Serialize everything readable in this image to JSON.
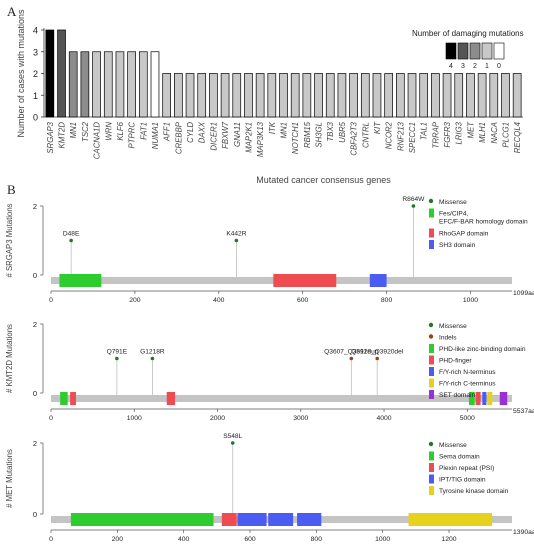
{
  "panel_a": {
    "letter": "A"
  },
  "panel_b": {
    "letter": "B"
  },
  "chart_data": [
    {
      "type": "bar",
      "ylabel": "Number of cases with mutations",
      "xlabel": "Mutated cancer consensus genes",
      "ylim": [
        0,
        4
      ],
      "yticks": [
        0,
        1,
        2,
        3,
        4
      ],
      "categories": [
        "SRGAP3",
        "KMT2D",
        "MN1",
        "TSC2",
        "CACNA1D",
        "WRN",
        "KLF6",
        "PTPRC",
        "FAT1",
        "NUMA1",
        "AFF1",
        "CREBBP",
        "CYLD",
        "DAXX",
        "DICER1",
        "FBXW7",
        "GNA11",
        "MAP2K1",
        "MAP3K13",
        "ITK",
        "MN1",
        "NOTCH1",
        "RBM15",
        "SH3GL",
        "TBX3",
        "UBR5",
        "CBFA2T3",
        "CNTRL",
        "KIT",
        "NCOR2",
        "RNF213",
        "SPECC1",
        "TAL1",
        "TRRAP",
        "FGFR3",
        "LRIG3",
        "MET",
        "MLH1",
        "NACA",
        "PLCG1",
        "RECQL4"
      ],
      "values": [
        4,
        4,
        3,
        3,
        3,
        3,
        3,
        3,
        3,
        3,
        2,
        2,
        2,
        2,
        2,
        2,
        2,
        2,
        2,
        2,
        2,
        2,
        2,
        2,
        2,
        2,
        2,
        2,
        2,
        2,
        2,
        2,
        2,
        2,
        2,
        2,
        2,
        2,
        2,
        2,
        2
      ],
      "damaging": [
        4,
        3,
        2,
        2,
        1,
        1,
        1,
        1,
        1,
        0,
        1,
        1,
        1,
        1,
        1,
        1,
        1,
        1,
        1,
        1,
        1,
        1,
        1,
        1,
        1,
        1,
        1,
        1,
        1,
        1,
        1,
        1,
        1,
        1,
        1,
        1,
        1,
        1,
        1,
        1,
        1
      ],
      "legend": {
        "title": "Number of damaging mutations",
        "labels": [
          "4",
          "3",
          "2",
          "1",
          "0"
        ],
        "colors": [
          "#000000",
          "#555555",
          "#8c8c8c",
          "#c8c8c8",
          "#ffffff"
        ]
      }
    },
    {
      "type": "lollipop",
      "ylabel": "# SRGAP3 Mutations",
      "ylim": [
        0,
        2
      ],
      "yticks": [
        0,
        2
      ],
      "xlim": [
        0,
        1099
      ],
      "xticks": [
        0,
        200,
        400,
        600,
        800,
        1000
      ],
      "length_label": "1099aa",
      "mutations": [
        {
          "pos": 48,
          "count": 1,
          "label": "D48E",
          "type": "Missense"
        },
        {
          "pos": 442,
          "count": 1,
          "label": "K442R",
          "type": "Missense"
        },
        {
          "pos": 864,
          "count": 2,
          "label": "R864W",
          "type": "Missense"
        }
      ],
      "domains": [
        {
          "start": 20,
          "end": 120,
          "color": "#2ecc2e"
        },
        {
          "start": 530,
          "end": 680,
          "color": "#ee4c50"
        },
        {
          "start": 760,
          "end": 800,
          "color": "#4b5cf2"
        }
      ],
      "legend": [
        {
          "kind": "dot",
          "color": "#1f7a1f",
          "label": "Missense"
        },
        {
          "kind": "box",
          "color": "#2ecc2e",
          "label": "Fes/CIP4, EFC/F-BAR homology domain"
        },
        {
          "kind": "box",
          "color": "#ee4c50",
          "label": "RhoGAP domain"
        },
        {
          "kind": "box",
          "color": "#4b5cf2",
          "label": "SH3 domain"
        }
      ]
    },
    {
      "type": "lollipop",
      "ylabel": "# KMT2D Mutations",
      "ylim": [
        0,
        2
      ],
      "yticks": [
        0,
        2
      ],
      "xlim": [
        0,
        5537
      ],
      "xticks": [
        0,
        1000,
        2000,
        3000,
        4000,
        5000
      ],
      "length_label": "5537aa",
      "mutations": [
        {
          "pos": 791,
          "count": 1,
          "label": "Q791E",
          "type": "Missense"
        },
        {
          "pos": 1218,
          "count": 1,
          "label": "G1218R",
          "type": "Missense"
        },
        {
          "pos": 3607,
          "count": 1,
          "label": "Q3607_Q3612dup",
          "type": "Indels"
        },
        {
          "pos": 3918,
          "count": 1,
          "label": "Q3918_Q3920del",
          "type": "Indels"
        }
      ],
      "domains": [
        {
          "start": 110,
          "end": 200,
          "color": "#2ecc2e"
        },
        {
          "start": 230,
          "end": 300,
          "color": "#ee4c50"
        },
        {
          "start": 1390,
          "end": 1490,
          "color": "#ee4c50"
        },
        {
          "start": 5020,
          "end": 5090,
          "color": "#2ecc2e"
        },
        {
          "start": 5100,
          "end": 5160,
          "color": "#ee4c50"
        },
        {
          "start": 5180,
          "end": 5230,
          "color": "#4b5cf2"
        },
        {
          "start": 5240,
          "end": 5300,
          "color": "#e6d21b"
        },
        {
          "start": 5390,
          "end": 5480,
          "color": "#9b2fd3"
        }
      ],
      "legend": [
        {
          "kind": "dot",
          "color": "#1f7a1f",
          "label": "Missense"
        },
        {
          "kind": "dot",
          "color": "#a0401a",
          "label": "Indels"
        },
        {
          "kind": "box",
          "color": "#2ecc2e",
          "label": "PHD-like zinc-binding domain"
        },
        {
          "kind": "box",
          "color": "#ee4c50",
          "label": "PHD-finger"
        },
        {
          "kind": "box",
          "color": "#4b5cf2",
          "label": "F/Y-rich N-terminus"
        },
        {
          "kind": "box",
          "color": "#e6d21b",
          "label": "F/Y-rich C-terminus"
        },
        {
          "kind": "box",
          "color": "#9b2fd3",
          "label": "SET domain"
        }
      ]
    },
    {
      "type": "lollipop",
      "ylabel": "# MET Mutations",
      "ylim": [
        0,
        2
      ],
      "yticks": [
        0,
        2
      ],
      "xlim": [
        0,
        1390
      ],
      "xticks": [
        0,
        200,
        400,
        600,
        800,
        1000,
        1200
      ],
      "length_label": "1390aa",
      "mutations": [
        {
          "pos": 548,
          "count": 2,
          "label": "S548L",
          "type": "Missense"
        }
      ],
      "domains": [
        {
          "start": 60,
          "end": 490,
          "color": "#2ecc2e"
        },
        {
          "start": 515,
          "end": 560,
          "color": "#ee4c50"
        },
        {
          "start": 562,
          "end": 650,
          "color": "#4b5cf2"
        },
        {
          "start": 655,
          "end": 730,
          "color": "#4b5cf2"
        },
        {
          "start": 742,
          "end": 815,
          "color": "#4b5cf2"
        },
        {
          "start": 1078,
          "end": 1330,
          "color": "#e6d21b"
        }
      ],
      "legend": [
        {
          "kind": "dot",
          "color": "#1f7a1f",
          "label": "Missense"
        },
        {
          "kind": "box",
          "color": "#2ecc2e",
          "label": "Sema domain"
        },
        {
          "kind": "box",
          "color": "#ee4c50",
          "label": "Plexin repeat (PSI)"
        },
        {
          "kind": "box",
          "color": "#4b5cf2",
          "label": "IPT/TIG domain"
        },
        {
          "kind": "box",
          "color": "#e6d21b",
          "label": "Tyrosine kinase domain"
        }
      ]
    }
  ]
}
